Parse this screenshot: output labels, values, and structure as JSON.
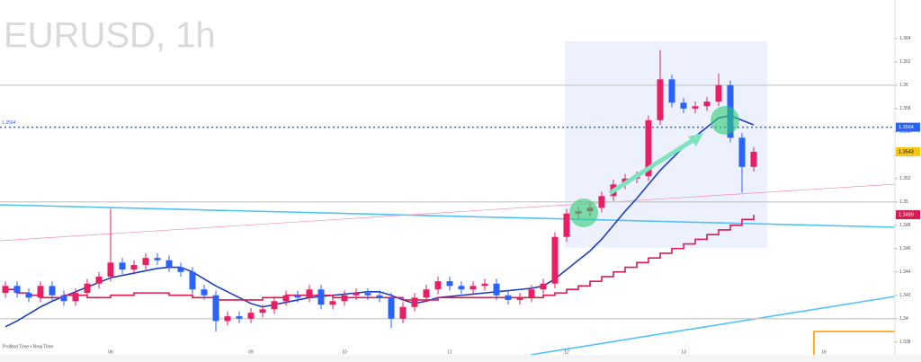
{
  "chart_data": {
    "type": "candlestick",
    "title": "EURUSD, 1h",
    "footer": "Profiled Time • Real Time",
    "up_color": "#e91e63",
    "down_color": "#2962ff",
    "categories": [
      null,
      null,
      null,
      null,
      null,
      null,
      null,
      null,
      null,
      "06",
      null,
      null,
      null,
      null,
      null,
      null,
      null,
      null,
      null,
      null,
      null,
      "09",
      null,
      null,
      null,
      null,
      null,
      null,
      null,
      "10",
      null,
      null,
      null,
      null,
      null,
      null,
      null,
      null,
      "11",
      null,
      null,
      null,
      null,
      null,
      null,
      null,
      null,
      null,
      "12",
      null,
      null,
      null,
      null,
      null,
      null,
      null,
      null,
      null,
      "13",
      null,
      null,
      null,
      null,
      null,
      null,
      null,
      null,
      null,
      null,
      null,
      "16",
      null,
      null,
      null,
      null,
      null
    ],
    "open": [
      1.3422,
      1.3428,
      1.3422,
      1.3418,
      1.3428,
      1.342,
      1.3415,
      1.3422,
      1.343,
      1.3436,
      1.3448,
      1.3442,
      1.3446,
      1.3452,
      1.345,
      1.3444,
      1.344,
      1.3425,
      1.342,
      1.3398,
      1.3402,
      1.34,
      1.3405,
      1.3408,
      1.3415,
      1.342,
      1.3418,
      1.3425,
      1.3412,
      1.3415,
      1.342,
      1.3422,
      1.342,
      1.3418,
      1.34,
      1.341,
      1.3418,
      1.3425,
      1.3432,
      1.3428,
      1.3425,
      1.3428,
      1.343,
      1.342,
      1.3416,
      1.3418,
      1.3425,
      1.343,
      1.347,
      1.349,
      1.3492,
      1.3495,
      1.3505,
      1.3515,
      1.352,
      1.3522,
      1.357,
      1.3605,
      1.3585,
      1.358,
      1.3582,
      1.3586,
      1.36,
      1.3555,
      1.353,
      null,
      null,
      null,
      null,
      null,
      null,
      null,
      null,
      null,
      null,
      null
    ],
    "high": [
      1.3432,
      1.3432,
      1.3426,
      1.3432,
      1.3432,
      1.3424,
      1.3426,
      1.3434,
      1.344,
      1.3494,
      1.3452,
      1.345,
      1.3456,
      1.3456,
      1.3454,
      1.3448,
      1.3444,
      1.3429,
      1.3424,
      1.3406,
      1.3406,
      1.3409,
      1.3412,
      1.3419,
      1.3424,
      1.3424,
      1.3429,
      1.3429,
      1.3419,
      1.3424,
      1.3426,
      1.3426,
      1.3424,
      1.3422,
      1.3414,
      1.3422,
      1.3429,
      1.3436,
      1.3436,
      1.3432,
      1.3432,
      1.3434,
      1.3434,
      1.3424,
      1.3422,
      1.3429,
      1.3434,
      1.3474,
      1.3494,
      1.3496,
      1.3499,
      1.3509,
      1.3519,
      1.3524,
      1.3526,
      1.3574,
      1.363,
      1.3609,
      1.3589,
      1.3586,
      1.359,
      1.361,
      1.3604,
      1.3559,
      1.3547,
      null,
      null,
      null,
      null,
      null,
      null,
      null,
      null,
      null,
      null,
      null
    ],
    "low": [
      1.3418,
      1.3418,
      1.3414,
      1.3414,
      1.3416,
      1.3411,
      1.3411,
      1.3418,
      1.3426,
      1.3432,
      1.3438,
      1.3438,
      1.3442,
      1.3446,
      1.344,
      1.3436,
      1.3421,
      1.3416,
      1.3389,
      1.3394,
      1.3396,
      1.3396,
      1.3401,
      1.3404,
      1.3411,
      1.3414,
      1.3414,
      1.3408,
      1.3408,
      1.3411,
      1.3416,
      1.3416,
      1.3414,
      1.3392,
      1.3396,
      1.3406,
      1.3414,
      1.3421,
      1.3424,
      1.3421,
      1.3421,
      1.3424,
      1.3416,
      1.3412,
      1.3412,
      1.3414,
      1.3421,
      1.3426,
      1.3466,
      1.3486,
      1.3488,
      1.3491,
      1.3501,
      1.3511,
      1.3516,
      1.3518,
      1.3566,
      1.3581,
      1.3576,
      1.3576,
      1.3578,
      1.3582,
      1.3551,
      1.3508,
      1.3526,
      null,
      null,
      null,
      null,
      null,
      null,
      null,
      null,
      null,
      null,
      null
    ],
    "close": [
      1.3428,
      1.3422,
      1.3418,
      1.3428,
      1.342,
      1.3415,
      1.3422,
      1.343,
      1.3436,
      1.3448,
      1.3442,
      1.3446,
      1.3452,
      1.345,
      1.3444,
      1.344,
      1.3425,
      1.342,
      1.3398,
      1.3402,
      1.34,
      1.3405,
      1.3408,
      1.3415,
      1.342,
      1.3418,
      1.3425,
      1.3412,
      1.3415,
      1.342,
      1.3422,
      1.342,
      1.3418,
      1.34,
      1.341,
      1.3418,
      1.3425,
      1.3432,
      1.3428,
      1.3425,
      1.3428,
      1.343,
      1.342,
      1.3416,
      1.3418,
      1.3425,
      1.343,
      1.347,
      1.349,
      1.3492,
      1.3495,
      1.3505,
      1.3515,
      1.352,
      1.3522,
      1.357,
      1.3605,
      1.3585,
      1.358,
      1.3582,
      1.3586,
      1.36,
      1.3555,
      1.353,
      1.3543,
      null,
      null,
      null,
      null,
      null,
      null,
      null,
      null,
      null,
      null,
      null
    ],
    "series": [
      {
        "color": "#1e3fbf",
        "style": "line",
        "values": [
          1.3393,
          1.3398,
          1.3404,
          1.341,
          1.3415,
          1.3419,
          1.3423,
          1.3427,
          1.3431,
          1.3435,
          1.3437,
          1.3439,
          1.3441,
          1.3443,
          1.3444,
          1.3444,
          1.344,
          1.3434,
          1.3428,
          1.3423,
          1.3418,
          1.3413,
          1.341,
          1.3412,
          1.3414,
          1.3416,
          1.3418,
          1.3419,
          1.342,
          1.3421,
          1.3422,
          1.3423,
          1.3423,
          1.342,
          1.3416,
          1.3413,
          1.3415,
          1.3418,
          1.3419,
          1.342,
          1.3421,
          1.3422,
          1.3423,
          1.3424,
          1.3425,
          1.3426,
          1.3428,
          1.3434,
          1.3442,
          1.345,
          1.3458,
          1.3468,
          1.348,
          1.3492,
          1.3503,
          1.3515,
          1.3527,
          1.3537,
          1.3547,
          1.3556,
          1.3564,
          1.3572,
          1.3574,
          1.357,
          1.3566,
          null,
          null,
          null,
          null,
          null,
          null,
          null,
          null,
          null,
          null,
          null
        ]
      },
      {
        "color": "#d81b50",
        "style": "step",
        "values": [
          1.3425,
          1.3422,
          1.342,
          1.3418,
          1.3418,
          1.342,
          1.342,
          1.3418,
          1.3418,
          1.342,
          1.342,
          1.3422,
          1.3422,
          1.3422,
          1.342,
          1.342,
          1.3418,
          1.3418,
          1.3416,
          1.3416,
          1.3416,
          1.3416,
          1.3418,
          1.3418,
          1.342,
          1.342,
          1.342,
          1.342,
          1.3418,
          1.3418,
          1.3418,
          1.3418,
          1.3418,
          1.3418,
          1.3416,
          1.3416,
          1.3416,
          1.3418,
          1.3418,
          1.3418,
          1.3418,
          1.3418,
          1.3418,
          1.3418,
          1.3418,
          1.3418,
          1.342,
          1.3422,
          1.3425,
          1.3428,
          1.3432,
          1.3436,
          1.344,
          1.3444,
          1.3448,
          1.3452,
          1.3456,
          1.346,
          1.3464,
          1.3468,
          1.3472,
          1.3476,
          1.348,
          1.3485,
          1.3489,
          null,
          null,
          null,
          null,
          null,
          null,
          null,
          null,
          null,
          null,
          null
        ]
      }
    ],
    "levels": [
      1.36,
      1.35,
      1.34
    ],
    "ylim": [
      1.3369,
      1.3673
    ],
    "yticks": [
      1.338,
      1.34,
      1.342,
      1.344,
      1.346,
      1.348,
      1.35,
      1.352,
      1.354,
      1.356,
      1.358,
      1.36,
      1.362,
      1.364
    ],
    "price_labels": [
      {
        "value": 1.3564,
        "color": "#2962ff"
      },
      {
        "value": 1.3543,
        "color": "#f5c518"
      },
      {
        "value": 1.3489,
        "color": "#d81b50"
      }
    ],
    "dashed_level": 1.3564
  }
}
